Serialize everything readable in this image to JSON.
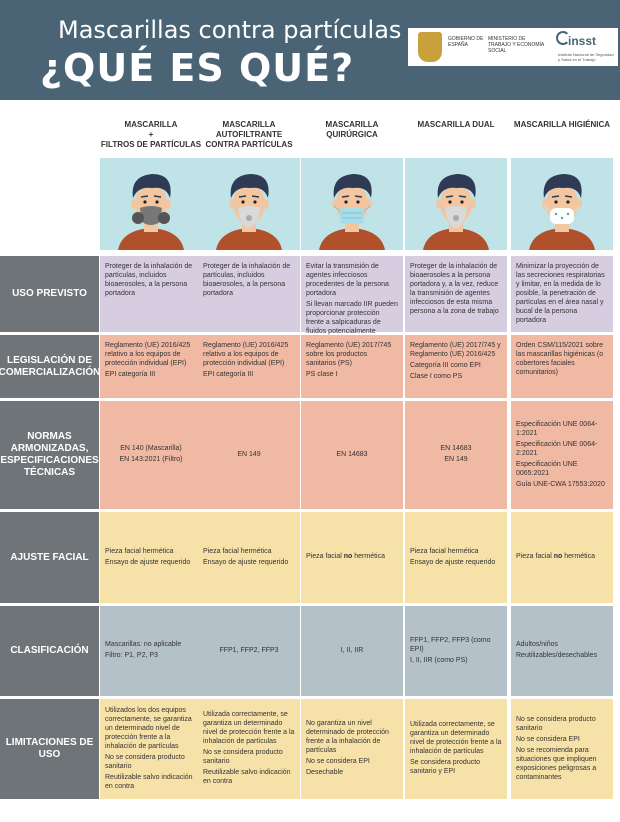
{
  "header": {
    "title_line1": "Mascarillas contra partículas",
    "title_line2": "¿QUÉ ES QUÉ?",
    "gov_label": "GOBIERNO DE ESPAÑA",
    "ministry_label": "MINISTERIO DE TRABAJO Y ECONOMÍA SOCIAL",
    "insst_label": "insst",
    "insst_sub": "Instituto Nacional de Seguridad y Salud en el Trabajo"
  },
  "columns": [
    {
      "title": "MASCARILLA\n+\nFILTROS DE PARTÍCULAS",
      "mask": "respirator"
    },
    {
      "title": "MASCARILLA AUTOFILTRANTE CONTRA PARTÍCULAS",
      "mask": "ffp"
    },
    {
      "title": "MASCARILLA QUIRÚRGICA",
      "mask": "surgical"
    },
    {
      "title": "MASCARILLA DUAL",
      "mask": "dual"
    },
    {
      "title": "MASCARILLA HIGIÉNICA",
      "mask": "hygienic"
    }
  ],
  "rows": {
    "uso": {
      "label": "USO PREVISTO",
      "cells": [
        [
          "Proteger de la inhalación de partículas, incluidos bioaerosoles, a la persona portadora"
        ],
        [
          "Proteger de la inhalación de partículas, incluidos bioaerosoles, a la persona portadora"
        ],
        [
          "Evitar la transmisión de agentes infecciosos procedentes de la persona portadora",
          "Si llevan marcado IIR pueden proporcionar protección frente a salpicaduras de fluidos potencialmente contaminados"
        ],
        [
          "Proteger de la inhalación de bioaerosoles a la persona portadora y, a la vez, reduce la transmisión de agentes infecciosos de esta misma persona a la zona de trabajo"
        ],
        [
          "Minimizar la proyección de las secreciones respiratorias y limitar, en la medida de lo posible, la penetración de partículas en el área nasal y bucal de la persona portadora"
        ]
      ]
    },
    "leg": {
      "label": "LEGISLACIÓN DE COMERCIALIZACIÓN",
      "cells": [
        [
          "Reglamento (UE) 2016/425 relativo a los equipos de protección individual (EPI)",
          "EPI categoría III"
        ],
        [
          "Reglamento (UE) 2016/425 relativo a los equipos de protección individual (EPI)",
          "EPI categoría III"
        ],
        [
          "Reglamento (UE) 2017/745 sobre los productos sanitarios (PS)",
          "PS clase I"
        ],
        [
          "Reglamento (UE) 2017/745 y Reglamento (UE) 2016/425",
          "Categoría III como EPI",
          "Clase I como PS"
        ],
        [
          "Orden CSM/115/2021 sobre las mascarillas higiénicas (o cobertores faciales comunitarios)"
        ]
      ]
    },
    "nor": {
      "label": "NORMAS ARMONIZADAS, ESPECIFICACIONES TÉCNICAS",
      "cells": [
        [
          "EN 140 (Mascarilla)",
          "EN 143:2021 (Filtro)"
        ],
        [
          "EN 149"
        ],
        [
          "EN 14683"
        ],
        [
          "EN 14683",
          "EN 149"
        ],
        [
          "Especificación UNE 0064-1:2021",
          "Especificación UNE 0064-2:2021",
          "Especificación UNE 0065:2021",
          "Guía UNE-CWA 17553:2020"
        ]
      ]
    },
    "aju": {
      "label": "AJUSTE FACIAL",
      "cells": [
        [
          "Pieza facial hermética",
          "Ensayo de ajuste requerido"
        ],
        [
          "Pieza facial hermética",
          "Ensayo de ajuste requerido"
        ],
        [
          "Pieza facial no hermética"
        ],
        [
          "Pieza facial hermética",
          "Ensayo de ajuste requerido"
        ],
        [
          "Pieza facial no hermética"
        ]
      ]
    },
    "cla": {
      "label": "CLASIFICACIÓN",
      "cells": [
        [
          "Mascarillas: no aplicable",
          "Filtro: P1, P2, P3"
        ],
        [
          "FFP1, FFP2, FFP3"
        ],
        [
          "I, II, IIR"
        ],
        [
          "FFP1, FFP2, FFP3 (como EPI)",
          "I, II, IIR (como PS)"
        ],
        [
          "Adultos/niños",
          "Reutilizables/desechables"
        ]
      ]
    },
    "lim": {
      "label": "LIMITACIONES DE USO",
      "cells": [
        [
          "Utilizados los dos equipos correctamente, se garantiza un determinado nivel de protección frente a la inhalación de partículas",
          "No se considera producto sanitario",
          "Reutilizable salvo indicación en contra"
        ],
        [
          "Utilizada correctamente, se garantiza un determinado nivel de protección frente a la inhalación de partículas",
          "No se considera producto sanitario",
          "Reutilizable salvo indicación en contra"
        ],
        [
          "No garantiza un nivel determinado de protección frente a la inhalación de partículas",
          "No se considera EPI",
          "Desechable"
        ],
        [
          "Utilizada correctamente, se garantiza un determinado nivel de protección frente a la inhalación de partículas",
          "Se considera producto sanitario y EPI"
        ],
        [
          "No se considera producto sanitario",
          "No se considera EPI",
          "No se recomienda para situaciones que impliquen exposiciones peligrosas a contaminantes"
        ]
      ]
    }
  },
  "colors": {
    "header": "#4a6475",
    "label": "#6f7478",
    "uso": "#d6cde0",
    "leg": "#f0b9a4",
    "aju": "#f6e1a8",
    "cla": "#b5c1c8",
    "portrait_bg": "#bfe3e6"
  }
}
